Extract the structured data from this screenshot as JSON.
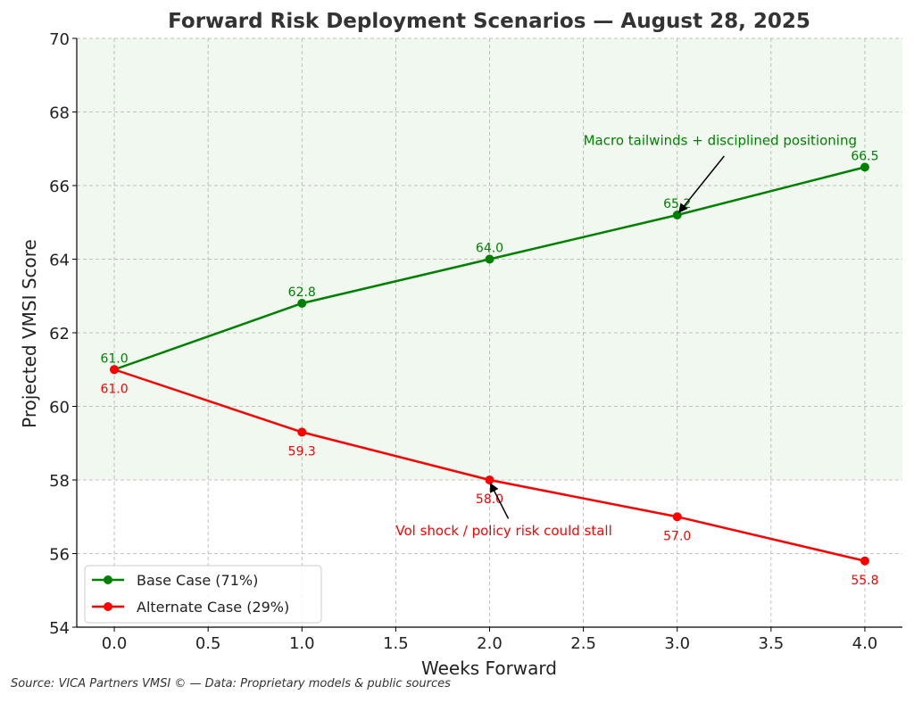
{
  "chart_data": {
    "type": "line",
    "title": "Forward Risk Deployment Scenarios — August 28, 2025",
    "xlabel": "Weeks Forward",
    "ylabel": "Projected VMSI Score",
    "xlim": [
      -0.2,
      4.2
    ],
    "ylim": [
      54,
      70
    ],
    "x_ticks": [
      0.0,
      0.5,
      1.0,
      1.5,
      2.0,
      2.5,
      3.0,
      3.5,
      4.0
    ],
    "x_tick_labels": [
      "0.0",
      "0.5",
      "1.0",
      "1.5",
      "2.0",
      "2.5",
      "3.0",
      "3.5",
      "4.0"
    ],
    "y_ticks": [
      54,
      56,
      58,
      60,
      62,
      64,
      66,
      68,
      70
    ],
    "y_tick_labels": [
      "54",
      "56",
      "58",
      "60",
      "62",
      "64",
      "66",
      "68",
      "70"
    ],
    "grid": true,
    "legend_position": "lower-left",
    "shaded_region": {
      "y_from": 58,
      "y_to": 70,
      "color": "#f0f8f0"
    },
    "series": [
      {
        "name": "Base Case (71%)",
        "color": "#008000",
        "x": [
          0,
          1,
          2,
          3,
          4
        ],
        "y": [
          61.0,
          62.8,
          64.0,
          65.2,
          66.5
        ],
        "labels": [
          "61.0",
          "62.8",
          "64.0",
          "65.2",
          "66.5"
        ],
        "label_side": "above"
      },
      {
        "name": "Alternate Case (29%)",
        "color": "#ff0000",
        "x": [
          0,
          1,
          2,
          3,
          4
        ],
        "y": [
          61.0,
          59.3,
          58.0,
          57.0,
          55.8
        ],
        "labels": [
          "61.0",
          "59.3",
          "58.0",
          "57.0",
          "55.8"
        ],
        "label_side": "below"
      }
    ],
    "annotations": [
      {
        "text": "Macro tailwinds + disciplined positioning",
        "color": "#008000",
        "text_x": 2.5,
        "text_y": 67.1,
        "target_x": 3.0,
        "target_y": 65.2
      },
      {
        "text": "Vol shock / policy risk could stall",
        "color": "#ff0000",
        "text_x": 1.5,
        "text_y": 56.5,
        "target_x": 2.0,
        "target_y": 58.0
      }
    ]
  },
  "footer": {
    "source": "Source: VICA Partners VMSI © — Data: Proprietary models & public sources"
  }
}
